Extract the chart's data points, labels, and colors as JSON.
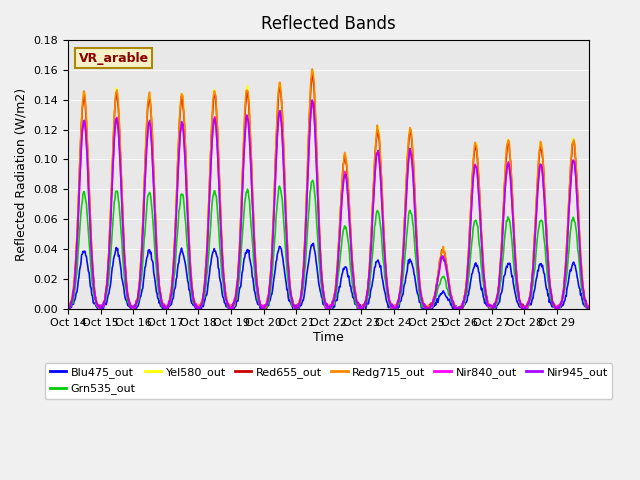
{
  "title": "Reflected Bands",
  "xlabel": "Time",
  "ylabel": "Reflected Radiation (W/m2)",
  "annotation": "VR_arable",
  "ylim": [
    0,
    0.18
  ],
  "background_color": "#e8e8e8",
  "series_order": [
    "Blu475_out",
    "Grn535_out",
    "Yel580_out",
    "Red655_out",
    "Redg715_out",
    "Nir840_out",
    "Nir945_out"
  ],
  "series_colors": {
    "Blu475_out": "#0000ff",
    "Grn535_out": "#00cc00",
    "Yel580_out": "#ffff00",
    "Red655_out": "#cc0000",
    "Redg715_out": "#ff8800",
    "Nir840_out": "#ff00ff",
    "Nir945_out": "#aa00ff"
  },
  "xtick_labels": [
    "Oct 14",
    "Oct 15",
    "Oct 16",
    "Oct 17",
    "Oct 18",
    "Oct 19",
    "Oct 20",
    "Oct 21",
    "Oct 22",
    "Oct 23",
    "Oct 24",
    "Oct 25",
    "Oct 26",
    "Oct 27",
    "Oct 28",
    "Oct 29"
  ],
  "ytick_vals": [
    0.0,
    0.02,
    0.04,
    0.06,
    0.08,
    0.1,
    0.12,
    0.14,
    0.16,
    0.18
  ],
  "base_peak": 0.148,
  "band_mults": {
    "Blu475_out": 0.27,
    "Grn535_out": 0.54,
    "Yel580_out": 1.0,
    "Red655_out": 0.98,
    "Redg715_out": 1.0,
    "Nir840_out": 0.87,
    "Nir945_out": 0.87
  },
  "day_scale_factors": [
    0.98,
    0.99,
    0.97,
    0.97,
    0.99,
    1.0,
    1.02,
    1.08,
    0.7,
    0.82,
    0.82,
    0.27,
    0.75,
    0.76,
    0.75,
    0.77
  ]
}
